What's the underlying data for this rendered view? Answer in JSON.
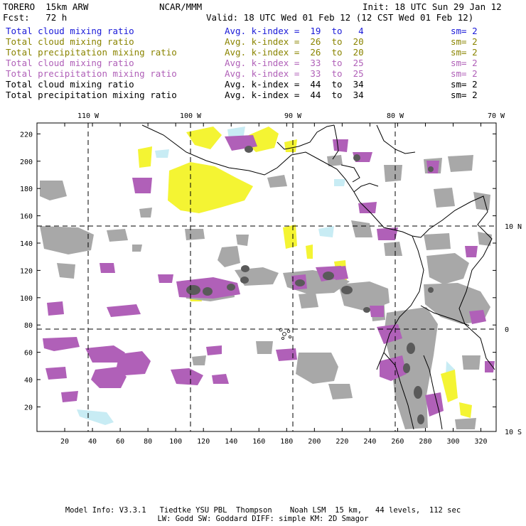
{
  "header": {
    "model": "TORERO  15km ARW",
    "org": "NCAR/MMM",
    "init": "Init: 18 UTC Sun 29 Jan 12",
    "fcst": "Fcst:   72 h",
    "valid": "Valid: 18 UTC Wed 01 Feb 12 (12 CST Wed 01 Feb 12)"
  },
  "legend": [
    {
      "field": "Total cloud mixing ratio",
      "kindex": "Avg. k-index =  19  to   4",
      "sm": "sm= 2",
      "color": "#1a1ad8"
    },
    {
      "field": "Total cloud mixing ratio",
      "kindex": "Avg. k-index =  26  to  20",
      "sm": "sm= 2",
      "color": "#8a8400"
    },
    {
      "field": "Total precipitation mixing ratio",
      "kindex": "Avg. k-index =  26  to  20",
      "sm": "sm= 2",
      "color": "#8a8400"
    },
    {
      "field": "Total cloud mixing ratio",
      "kindex": "Avg. k-index =  33  to  25",
      "sm": "sm= 2",
      "color": "#b060b8"
    },
    {
      "field": "Total precipitation mixing ratio",
      "kindex": "Avg. k-index =  33  to  25",
      "sm": "sm= 2",
      "color": "#b060b8"
    },
    {
      "field": "Total cloud mixing ratio",
      "kindex": "Avg. k-index =  44  to  34",
      "sm": "sm= 2",
      "color": "#000000"
    },
    {
      "field": "Total precipitation mixing ratio",
      "kindex": "Avg. k-index =  44  to  34",
      "sm": "sm= 2",
      "color": "#000000"
    }
  ],
  "map": {
    "lon_labels": [
      "110 W",
      "100 W",
      "90 W",
      "80 W",
      "70 W"
    ],
    "lat_labels": [
      "10 N",
      "0",
      "10 S"
    ],
    "x_ticks": [
      "20",
      "40",
      "60",
      "80",
      "100",
      "120",
      "140",
      "160",
      "180",
      "200",
      "220",
      "240",
      "260",
      "280",
      "300",
      "320"
    ],
    "y_ticks": [
      "20",
      "40",
      "60",
      "80",
      "100",
      "120",
      "140",
      "160",
      "180",
      "200",
      "220"
    ],
    "colors": {
      "gray": "#a8a8a8",
      "dark_gray": "#5a5a5a",
      "purple": "#b060b8",
      "yellow": "#f4f433",
      "light_blue": "#c8ecf4",
      "coast": "#000000"
    }
  },
  "footer": {
    "line1": "Model Info: V3.3.1   Tiedtke YSU PBL  Thompson    Noah LSM  15 km,   44 levels,  112 sec",
    "line2": "LW: Godd SW: Goddard DIFF: simple KM: 2D Smagor"
  }
}
